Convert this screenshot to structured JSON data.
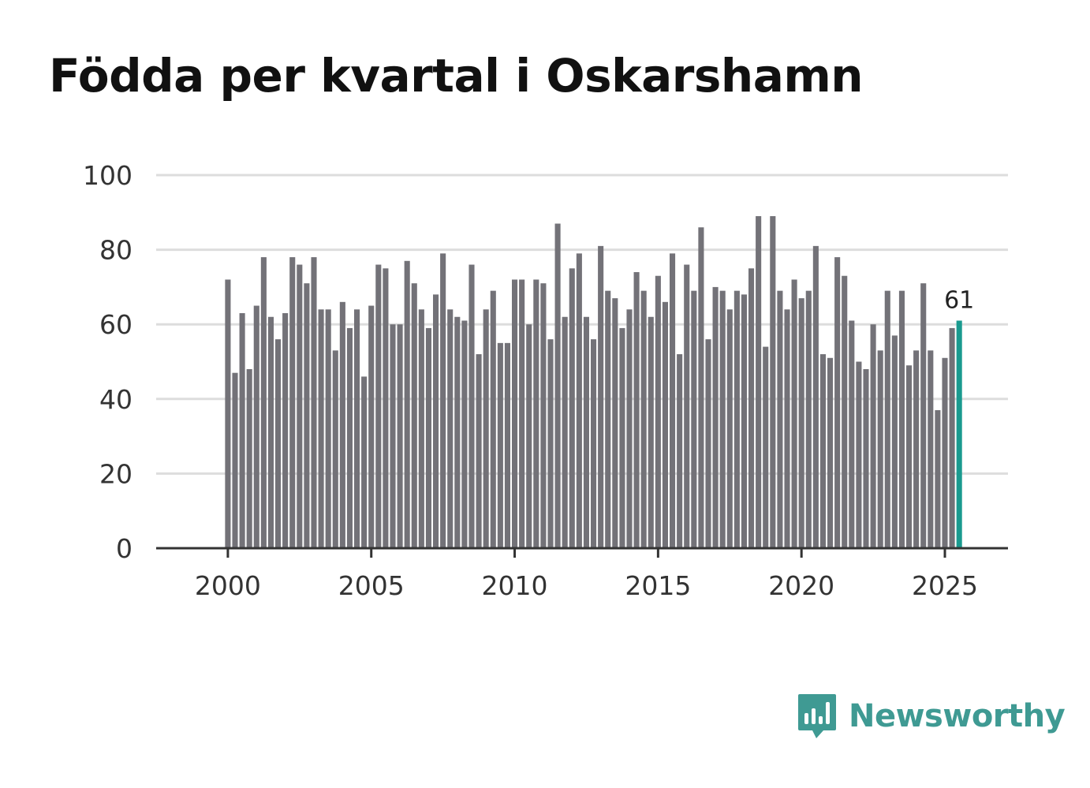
{
  "title": "Födda per kvartal i Oskarshamn",
  "brand": {
    "name": "Newsworthy",
    "icon": "newsworthy-logo-icon"
  },
  "colors": {
    "bar": "#737278",
    "highlight": "#1a9a8f",
    "grid": "#dddddd",
    "axis": "#333333",
    "brand": "#3f9a93"
  },
  "chart_data": {
    "type": "bar",
    "title": "Födda per kvartal i Oskarshamn",
    "xlabel": "",
    "ylabel": "",
    "x_start": 2000.0,
    "x_step": 0.25,
    "xlim": [
      1997.5,
      2027.2
    ],
    "ylim": [
      0,
      100
    ],
    "yticks": [
      0,
      20,
      40,
      60,
      80,
      100
    ],
    "xticks": [
      2000,
      2005,
      2010,
      2015,
      2020,
      2025
    ],
    "grid": true,
    "values": [
      72,
      47,
      63,
      48,
      65,
      78,
      62,
      56,
      63,
      78,
      76,
      71,
      78,
      64,
      64,
      53,
      66,
      59,
      64,
      46,
      65,
      76,
      75,
      60,
      60,
      77,
      71,
      64,
      59,
      68,
      79,
      64,
      62,
      61,
      76,
      52,
      64,
      69,
      55,
      55,
      72,
      72,
      60,
      72,
      71,
      56,
      87,
      62,
      75,
      79,
      62,
      56,
      81,
      69,
      67,
      59,
      64,
      74,
      69,
      62,
      73,
      66,
      79,
      52,
      76,
      69,
      86,
      56,
      70,
      69,
      64,
      69,
      68,
      75,
      89,
      54,
      89,
      69,
      64,
      72,
      67,
      69,
      81,
      52,
      51,
      78,
      73,
      61,
      50,
      48,
      60,
      53,
      69,
      57,
      69,
      49,
      53,
      71,
      53,
      37,
      51,
      59,
      61
    ],
    "highlight_index": 102,
    "highlight_label": "61"
  }
}
